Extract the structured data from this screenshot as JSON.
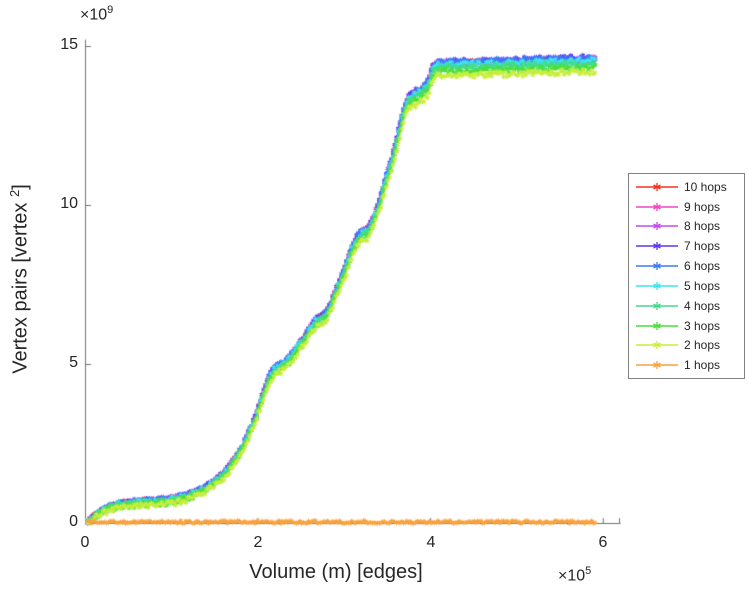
{
  "figure": {
    "background": "#ffffff",
    "axis_color": "#737373",
    "text_color": "#262626"
  },
  "chart_data": {
    "type": "line",
    "title": "",
    "xlabel": "Volume (m) [edges]",
    "ylabel_parts": {
      "pre": "Vertex pairs [vertex",
      "sup": "2",
      "post": "]"
    },
    "x_exponent": {
      "base": "×10",
      "sup": "5"
    },
    "y_exponent": {
      "base": "×10",
      "sup": "9"
    },
    "x_unit_multiplier": 100000,
    "y_unit_multiplier": 1000000000,
    "xlim": [
      0,
      6.2
    ],
    "ylim": [
      0,
      15.2
    ],
    "xticks": [
      "0",
      "2",
      "4",
      "6"
    ],
    "yticks": [
      "15",
      "10",
      "5",
      "0"
    ],
    "xtick_values": [
      0,
      2,
      4,
      6
    ],
    "ytick_values": [
      0,
      5,
      10,
      15
    ],
    "grid": false,
    "legend_position": "right-outside",
    "marker": "*",
    "x_range": [
      0.03,
      5.92
    ],
    "sample_step": 0.02,
    "base_curve_anchors": [
      [
        0.03,
        0.03
      ],
      [
        0.1,
        0.15
      ],
      [
        0.2,
        0.3
      ],
      [
        0.32,
        0.42
      ],
      [
        0.5,
        0.5
      ],
      [
        0.7,
        0.54
      ],
      [
        0.9,
        0.58
      ],
      [
        1.05,
        0.64
      ],
      [
        1.2,
        0.74
      ],
      [
        1.35,
        0.9
      ],
      [
        1.5,
        1.15
      ],
      [
        1.62,
        1.45
      ],
      [
        1.72,
        1.8
      ],
      [
        1.82,
        2.2
      ],
      [
        1.9,
        2.7
      ],
      [
        1.97,
        3.1
      ],
      [
        2.03,
        3.6
      ],
      [
        2.08,
        4.0
      ],
      [
        2.13,
        4.35
      ],
      [
        2.18,
        4.6
      ],
      [
        2.25,
        4.75
      ],
      [
        2.33,
        4.85
      ],
      [
        2.4,
        5.1
      ],
      [
        2.48,
        5.4
      ],
      [
        2.55,
        5.65
      ],
      [
        2.62,
        5.95
      ],
      [
        2.68,
        6.15
      ],
      [
        2.78,
        6.3
      ],
      [
        2.84,
        6.6
      ],
      [
        2.9,
        7.0
      ],
      [
        2.96,
        7.4
      ],
      [
        3.02,
        7.8
      ],
      [
        3.08,
        8.3
      ],
      [
        3.13,
        8.6
      ],
      [
        3.18,
        8.8
      ],
      [
        3.28,
        8.95
      ],
      [
        3.34,
        9.3
      ],
      [
        3.4,
        9.7
      ],
      [
        3.45,
        10.2
      ],
      [
        3.5,
        10.65
      ],
      [
        3.55,
        11.05
      ],
      [
        3.6,
        11.6
      ],
      [
        3.65,
        12.15
      ],
      [
        3.68,
        12.5
      ],
      [
        3.72,
        12.85
      ],
      [
        3.76,
        13.05
      ],
      [
        3.82,
        13.15
      ],
      [
        3.9,
        13.25
      ],
      [
        3.96,
        13.4
      ],
      [
        4.0,
        13.65
      ],
      [
        4.03,
        13.95
      ],
      [
        4.08,
        14.05
      ],
      [
        4.2,
        14.08
      ],
      [
        4.6,
        14.1
      ],
      [
        5.0,
        14.13
      ],
      [
        5.5,
        14.17
      ],
      [
        5.92,
        14.2
      ]
    ],
    "series": [
      {
        "name": "10 hops",
        "color": "#f5301e",
        "mult": 1.018,
        "add": 0.126,
        "jitter": 0.18,
        "seed": 10
      },
      {
        "name": "9 hops",
        "color": "#f246c3",
        "mult": 1.0185,
        "add": 0.128,
        "jitter": 0.18,
        "seed": 9
      },
      {
        "name": "8 hops",
        "color": "#c74af0",
        "mult": 1.019,
        "add": 0.131,
        "jitter": 0.18,
        "seed": 8
      },
      {
        "name": "7 hops",
        "color": "#5d36f2",
        "mult": 1.021,
        "add": 0.138,
        "jitter": 0.18,
        "seed": 7
      },
      {
        "name": "6 hops",
        "color": "#3c7af5",
        "mult": 1.02,
        "add": 0.135,
        "jitter": 0.18,
        "seed": 6
      },
      {
        "name": "5 hops",
        "color": "#3de5ec",
        "mult": 1.016,
        "add": 0.115,
        "jitter": 0.18,
        "seed": 5
      },
      {
        "name": "4 hops",
        "color": "#41dc89",
        "mult": 1.012,
        "add": 0.085,
        "jitter": 0.18,
        "seed": 4
      },
      {
        "name": "3 hops",
        "color": "#4ade3d",
        "mult": 1.006,
        "add": 0.045,
        "jitter": 0.18,
        "seed": 3
      },
      {
        "name": "2 hops",
        "color": "#c9ee3a",
        "mult": 1.0,
        "add": 0.0,
        "jitter": 0.18,
        "seed": 2
      },
      {
        "name": "1 hops",
        "color": "#f9a13c",
        "flat": 0.03,
        "jitter": 0.09,
        "seed": 1
      }
    ]
  }
}
